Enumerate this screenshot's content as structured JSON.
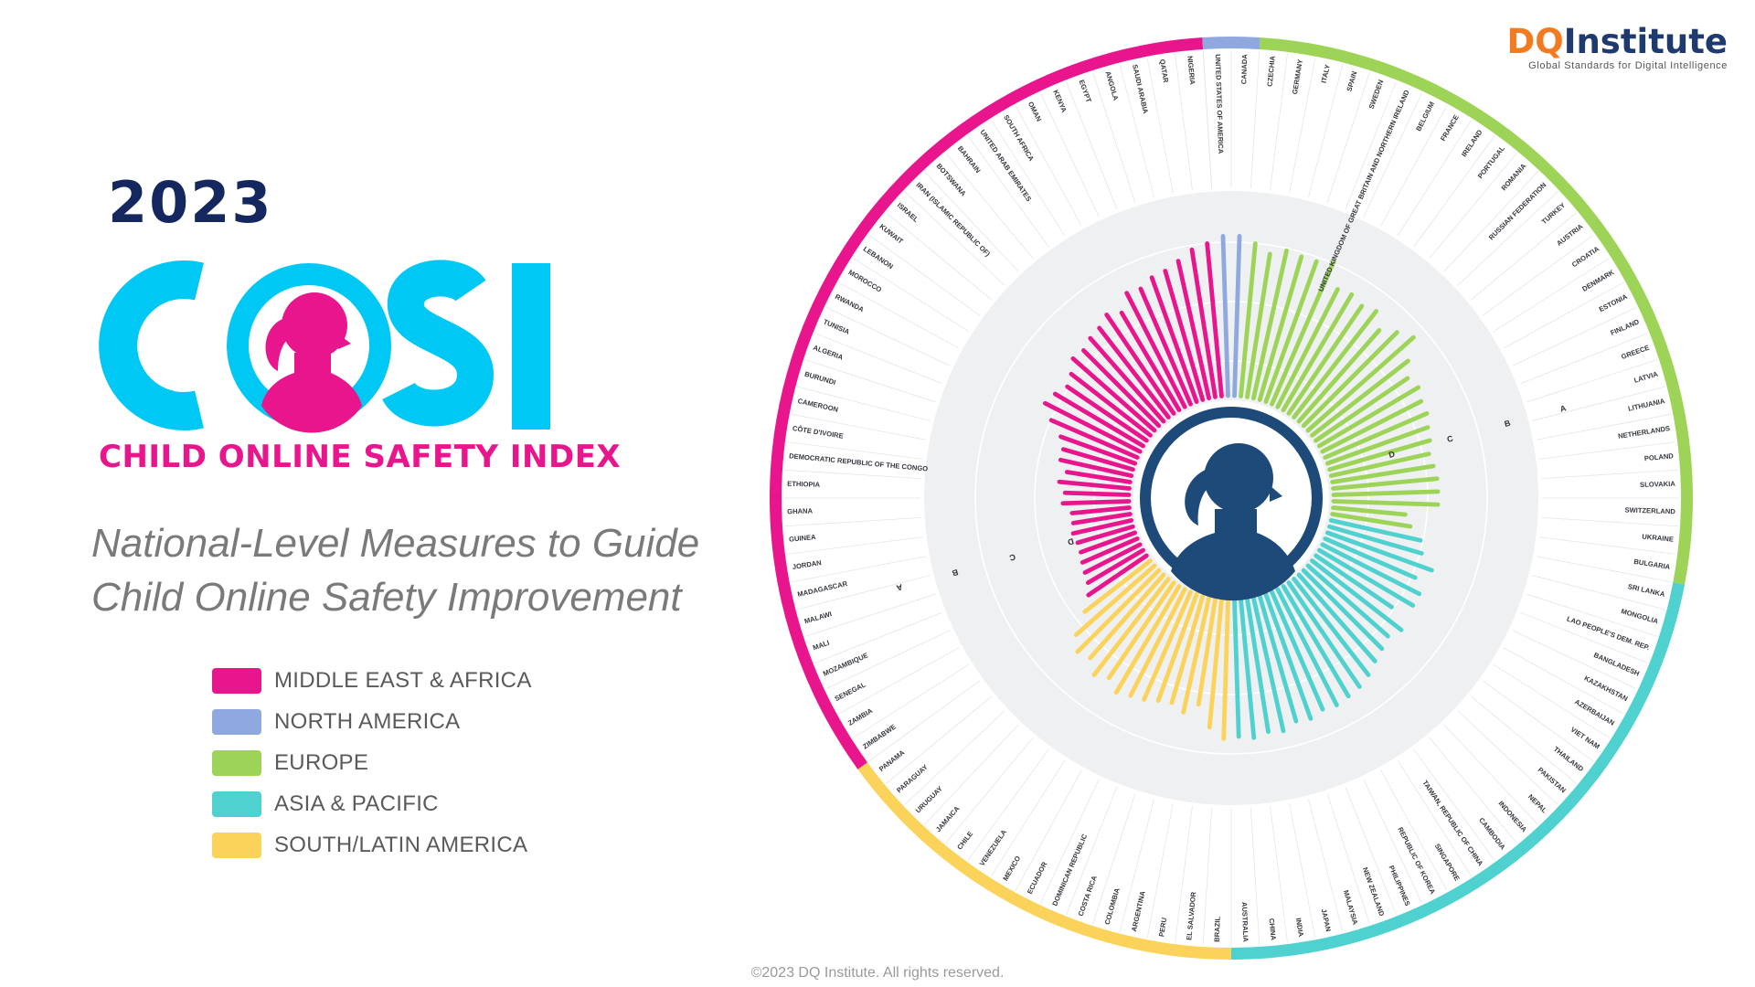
{
  "header": {
    "year": "2023",
    "logo_text": "COSI",
    "subtitle": "CHILD ONLINE SAFETY INDEX",
    "tagline_line1": "National-Level Measures to Guide",
    "tagline_line2": "Child Online Safety Improvement"
  },
  "brand": {
    "name_dq": "DQ",
    "name_rest": "Institute",
    "tagline": "Global Standards for Digital Intelligence"
  },
  "copyright": "©2023 DQ Institute. All rights reserved.",
  "legend": [
    {
      "label": "MIDDLE EAST & AFRICA",
      "color": "#e8158d"
    },
    {
      "label": "NORTH AMERICA",
      "color": "#8fa8e0"
    },
    {
      "label": "EUROPE",
      "color": "#9dd458"
    },
    {
      "label": "ASIA & PACIFIC",
      "color": "#4fd1cf"
    },
    {
      "label": "SOUTH/LATIN AMERICA",
      "color": "#fbd35a"
    }
  ],
  "colors": {
    "ring_gray": "#eef0f2",
    "center": "#1e4a7a",
    "logo_cyan": "#00c8f5",
    "logo_pink": "#e8158d"
  },
  "chart_data": {
    "type": "bar",
    "layout": "radial",
    "title": "",
    "grade_labels": [
      "D",
      "C",
      "B",
      "A"
    ],
    "scale_max": 100,
    "regions": [
      {
        "name": "NORTH AMERICA",
        "color": "#8fa8e0"
      },
      {
        "name": "EUROPE",
        "color": "#9dd458"
      },
      {
        "name": "ASIA & PACIFIC",
        "color": "#4fd1cf"
      },
      {
        "name": "SOUTH/LATIN AMERICA",
        "color": "#fbd35a"
      },
      {
        "name": "MIDDLE EAST & AFRICA",
        "color": "#e8158d"
      }
    ],
    "countries": [
      {
        "name": "UNITED STATES OF AMERICA",
        "region": "NORTH AMERICA",
        "value": 75
      },
      {
        "name": "CANADA",
        "region": "NORTH AMERICA",
        "value": 75
      },
      {
        "name": "CZECHIA",
        "region": "EUROPE",
        "value": 72
      },
      {
        "name": "GERMANY",
        "region": "EUROPE",
        "value": 68
      },
      {
        "name": "ITALY",
        "region": "EUROPE",
        "value": 71
      },
      {
        "name": "SPAIN",
        "region": "EUROPE",
        "value": 70
      },
      {
        "name": "SWEDEN",
        "region": "EUROPE",
        "value": 70
      },
      {
        "name": "UNITED KINGDOM OF GREAT BRITAIN AND NORTHERN IRELAND",
        "region": "EUROPE",
        "value": 73
      },
      {
        "name": "BELGIUM",
        "region": "EUROPE",
        "value": 62
      },
      {
        "name": "FRANCE",
        "region": "EUROPE",
        "value": 63
      },
      {
        "name": "IRELAND",
        "region": "EUROPE",
        "value": 61
      },
      {
        "name": "PORTUGAL",
        "region": "EUROPE",
        "value": 63
      },
      {
        "name": "ROMANIA",
        "region": "EUROPE",
        "value": 57
      },
      {
        "name": "RUSSIAN FEDERATION",
        "region": "EUROPE",
        "value": 62
      },
      {
        "name": "TURKEY",
        "region": "EUROPE",
        "value": 66
      },
      {
        "name": "AUSTRIA",
        "region": "EUROPE",
        "value": 57
      },
      {
        "name": "CROATIA",
        "region": "EUROPE",
        "value": 52
      },
      {
        "name": "DENMARK",
        "region": "EUROPE",
        "value": 54
      },
      {
        "name": "ESTONIA",
        "region": "EUROPE",
        "value": 52
      },
      {
        "name": "FINLAND",
        "region": "EUROPE",
        "value": 52
      },
      {
        "name": "GREECE",
        "region": "EUROPE",
        "value": 50
      },
      {
        "name": "LATVIA",
        "region": "EUROPE",
        "value": 49
      },
      {
        "name": "LITHUANIA",
        "region": "EUROPE",
        "value": 47
      },
      {
        "name": "NETHERLANDS",
        "region": "EUROPE",
        "value": 48
      },
      {
        "name": "POLAND",
        "region": "EUROPE",
        "value": 49
      },
      {
        "name": "SLOVAKIA",
        "region": "EUROPE",
        "value": 49
      },
      {
        "name": "SWITZERLAND",
        "region": "EUROPE",
        "value": 49
      },
      {
        "name": "UKRAINE",
        "region": "EUROPE",
        "value": 34
      },
      {
        "name": "BULGARIA",
        "region": "EUROPE",
        "value": 37
      },
      {
        "name": "SRI LANKA",
        "region": "ASIA & PACIFIC",
        "value": 43
      },
      {
        "name": "MONGOLIA",
        "region": "ASIA & PACIFIC",
        "value": 45
      },
      {
        "name": "LAO PEOPLE'S DEM. REP.",
        "region": "ASIA & PACIFIC",
        "value": 52
      },
      {
        "name": "BANGLADESH",
        "region": "ASIA & PACIFIC",
        "value": 46
      },
      {
        "name": "KAZAKHSTAN",
        "region": "ASIA & PACIFIC",
        "value": 51
      },
      {
        "name": "AZERBAIJAN",
        "region": "ASIA & PACIFIC",
        "value": 51
      },
      {
        "name": "VIET NAM",
        "region": "ASIA & PACIFIC",
        "value": 43
      },
      {
        "name": "THAILAND",
        "region": "ASIA & PACIFIC",
        "value": 53
      },
      {
        "name": "PAKISTAN",
        "region": "ASIA & PACIFIC",
        "value": 50
      },
      {
        "name": "NEPAL",
        "region": "ASIA & PACIFIC",
        "value": 52
      },
      {
        "name": "INDONESIA",
        "region": "ASIA & PACIFIC",
        "value": 54
      },
      {
        "name": "CAMBODIA",
        "region": "ASIA & PACIFIC",
        "value": 57
      },
      {
        "name": "TAIWAN, REPUBLIC OF CHINA",
        "region": "ASIA & PACIFIC",
        "value": 59
      },
      {
        "name": "SINGAPORE",
        "region": "ASIA & PACIFIC",
        "value": 60
      },
      {
        "name": "REPUBLIC OF KOREA",
        "region": "ASIA & PACIFIC",
        "value": 61
      },
      {
        "name": "PHILIPPINES",
        "region": "ASIA & PACIFIC",
        "value": 60
      },
      {
        "name": "NEW ZEALAND",
        "region": "ASIA & PACIFIC",
        "value": 62
      },
      {
        "name": "MALAYSIA",
        "region": "ASIA & PACIFIC",
        "value": 61
      },
      {
        "name": "JAPAN",
        "region": "ASIA & PACIFIC",
        "value": 64
      },
      {
        "name": "INDIA",
        "region": "ASIA & PACIFIC",
        "value": 63
      },
      {
        "name": "CHINA",
        "region": "ASIA & PACIFIC",
        "value": 65
      },
      {
        "name": "AUSTRALIA",
        "region": "ASIA & PACIFIC",
        "value": 64
      },
      {
        "name": "BRAZIL",
        "region": "SOUTH/LATIN AMERICA",
        "value": 65
      },
      {
        "name": "EL SALVADOR",
        "region": "SOUTH/LATIN AMERICA",
        "value": 60
      },
      {
        "name": "PERU",
        "region": "SOUTH/LATIN AMERICA",
        "value": 50
      },
      {
        "name": "ARGENTINA",
        "region": "SOUTH/LATIN AMERICA",
        "value": 55
      },
      {
        "name": "COLOMBIA",
        "region": "SOUTH/LATIN AMERICA",
        "value": 52
      },
      {
        "name": "COSTA RICA",
        "region": "SOUTH/LATIN AMERICA",
        "value": 53
      },
      {
        "name": "DOMINICAN REPUBLIC",
        "region": "SOUTH/LATIN AMERICA",
        "value": 55
      },
      {
        "name": "ECUADOR",
        "region": "SOUTH/LATIN AMERICA",
        "value": 56
      },
      {
        "name": "MEXICO",
        "region": "SOUTH/LATIN AMERICA",
        "value": 58
      },
      {
        "name": "VENEZUELA",
        "region": "SOUTH/LATIN AMERICA",
        "value": 54
      },
      {
        "name": "CHILE",
        "region": "SOUTH/LATIN AMERICA",
        "value": 57
      },
      {
        "name": "JAMAICA",
        "region": "SOUTH/LATIN AMERICA",
        "value": 52
      },
      {
        "name": "URUGUAY",
        "region": "SOUTH/LATIN AMERICA",
        "value": 54
      },
      {
        "name": "PARAGUAY",
        "region": "SOUTH/LATIN AMERICA",
        "value": 49
      },
      {
        "name": "PANAMA",
        "region": "SOUTH/LATIN AMERICA",
        "value": 39
      },
      {
        "name": "ZIMBABWE",
        "region": "MIDDLE EAST & AFRICA",
        "value": 33
      },
      {
        "name": "ZAMBIA",
        "region": "MIDDLE EAST & AFRICA",
        "value": 30
      },
      {
        "name": "SENEGAL",
        "region": "MIDDLE EAST & AFRICA",
        "value": 29
      },
      {
        "name": "MOZAMBIQUE",
        "region": "MIDDLE EAST & AFRICA",
        "value": 28
      },
      {
        "name": "MALI",
        "region": "MIDDLE EAST & AFRICA",
        "value": 27
      },
      {
        "name": "MALAWI",
        "region": "MIDDLE EAST & AFRICA",
        "value": 27
      },
      {
        "name": "MADAGASCAR",
        "region": "MIDDLE EAST & AFRICA",
        "value": 28
      },
      {
        "name": "JORDAN",
        "region": "MIDDLE EAST & AFRICA",
        "value": 27
      },
      {
        "name": "GUINEA",
        "region": "MIDDLE EAST & AFRICA",
        "value": 27
      },
      {
        "name": "GHANA",
        "region": "MIDDLE EAST & AFRICA",
        "value": 31
      },
      {
        "name": "ETHIOPIA",
        "region": "MIDDLE EAST & AFRICA",
        "value": 30
      },
      {
        "name": "DEMOCRATIC REPUBLIC OF THE CONGO",
        "region": "MIDDLE EAST & AFRICA",
        "value": 33
      },
      {
        "name": "CÔTE D'IVOIRE",
        "region": "MIDDLE EAST & AFRICA",
        "value": 30
      },
      {
        "name": "CAMEROON",
        "region": "MIDDLE EAST & AFRICA",
        "value": 34
      },
      {
        "name": "BURUNDI",
        "region": "MIDDLE EAST & AFRICA",
        "value": 34
      },
      {
        "name": "ALGERIA",
        "region": "MIDDLE EAST & AFRICA",
        "value": 37
      },
      {
        "name": "TUNISIA",
        "region": "MIDDLE EAST & AFRICA",
        "value": 44
      },
      {
        "name": "RWANDA",
        "region": "MIDDLE EAST & AFRICA",
        "value": 50
      },
      {
        "name": "MOROCCO",
        "region": "MIDDLE EAST & AFRICA",
        "value": 48
      },
      {
        "name": "LEBANON",
        "region": "MIDDLE EAST & AFRICA",
        "value": 45
      },
      {
        "name": "KUWAIT",
        "region": "MIDDLE EAST & AFRICA",
        "value": 47
      },
      {
        "name": "ISRAEL",
        "region": "MIDDLE EAST & AFRICA",
        "value": 51
      },
      {
        "name": "IRAN (ISLAMIC REPUBLIC OF)",
        "region": "MIDDLE EAST & AFRICA",
        "value": 50
      },
      {
        "name": "BOTSWANA",
        "region": "MIDDLE EAST & AFRICA",
        "value": 52
      },
      {
        "name": "BAHRAIN",
        "region": "MIDDLE EAST & AFRICA",
        "value": 53
      },
      {
        "name": "UNITED ARAB EMIRATES",
        "region": "MIDDLE EAST & AFRICA",
        "value": 56
      },
      {
        "name": "SOUTH AFRICA",
        "region": "MIDDLE EAST & AFRICA",
        "value": 53
      },
      {
        "name": "OMAN",
        "region": "MIDDLE EAST & AFRICA",
        "value": 60
      },
      {
        "name": "KENYA",
        "region": "MIDDLE EAST & AFRICA",
        "value": 59
      },
      {
        "name": "EGYPT",
        "region": "MIDDLE EAST & AFRICA",
        "value": 62
      },
      {
        "name": "ANGOLA",
        "region": "MIDDLE EAST & AFRICA",
        "value": 63
      },
      {
        "name": "SAUDI ARABIA",
        "region": "MIDDLE EAST & AFRICA",
        "value": 66
      },
      {
        "name": "QATAR",
        "region": "MIDDLE EAST & AFRICA",
        "value": 70
      },
      {
        "name": "NIGERIA",
        "region": "MIDDLE EAST & AFRICA",
        "value": 72
      }
    ]
  }
}
